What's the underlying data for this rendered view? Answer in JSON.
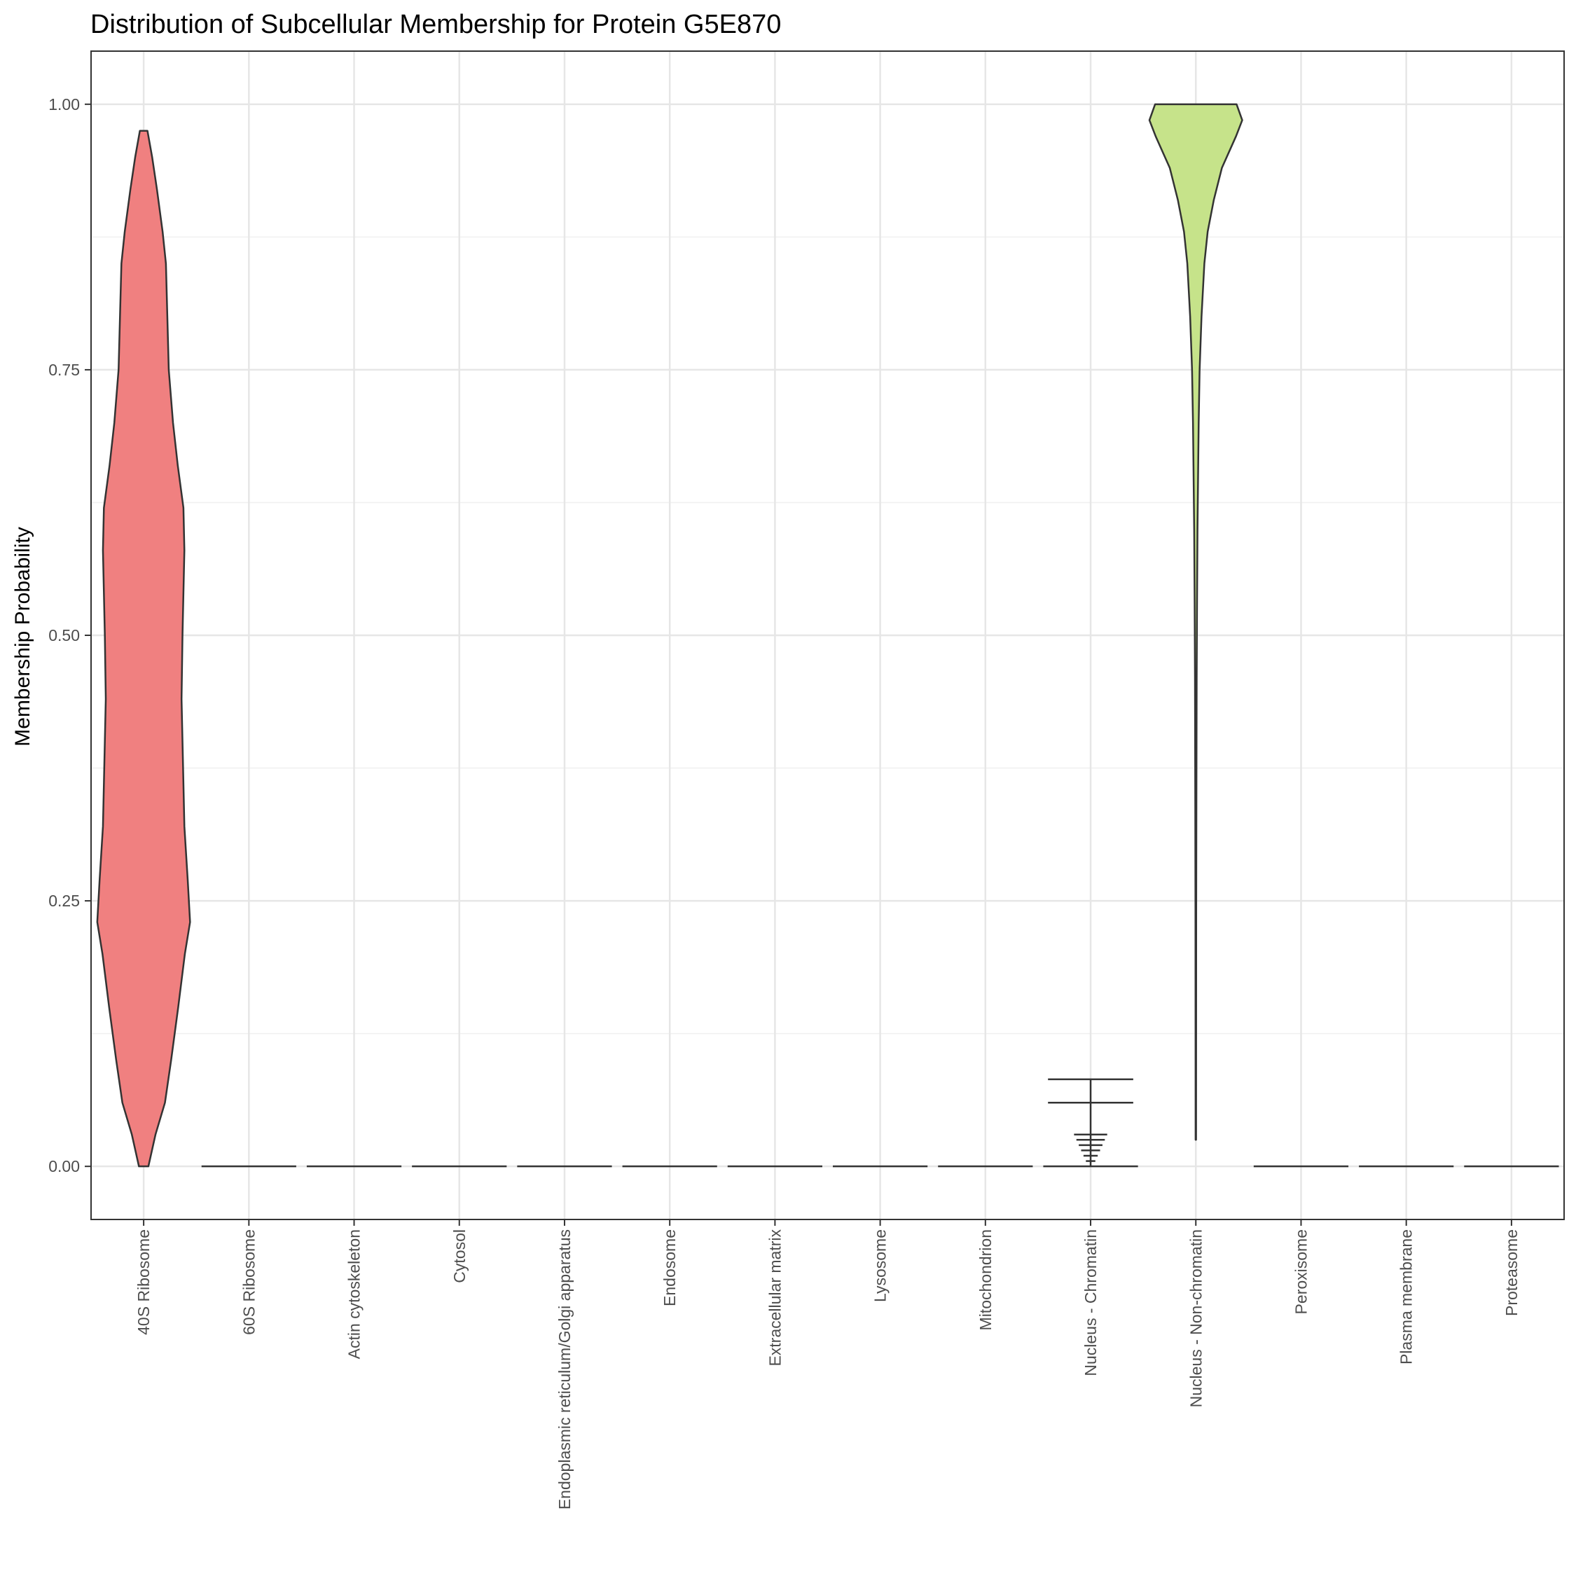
{
  "chart_data": {
    "type": "violin",
    "title": "Distribution of Subcellular Membership for Protein G5E870",
    "xlabel": "",
    "ylabel": "Membership Probability",
    "ylim": [
      -0.05,
      1.05
    ],
    "yticks": [
      "0.00",
      "0.25",
      "0.50",
      "0.75",
      "1.00"
    ],
    "grid": true,
    "legend": "none",
    "categories": [
      "40S Ribosome",
      "60S Ribosome",
      "Actin cytoskeleton",
      "Cytosol",
      "Endoplasmic reticulum/Golgi apparatus",
      "Endosome",
      "Extracellular matrix",
      "Lysosome",
      "Mitochondrion",
      "Nucleus - Chromatin",
      "Nucleus - Non-chromatin",
      "Peroxisome",
      "Plasma membrane",
      "Proteasome"
    ],
    "violins": [
      {
        "category": "40S Ribosome",
        "color": "#F08080",
        "range": [
          0.0,
          0.975
        ],
        "density": [
          [
            0.0,
            0.1
          ],
          [
            0.03,
            0.25
          ],
          [
            0.06,
            0.45
          ],
          [
            0.1,
            0.58
          ],
          [
            0.15,
            0.73
          ],
          [
            0.2,
            0.87
          ],
          [
            0.23,
            0.98
          ],
          [
            0.27,
            0.93
          ],
          [
            0.32,
            0.86
          ],
          [
            0.38,
            0.83
          ],
          [
            0.44,
            0.8
          ],
          [
            0.5,
            0.82
          ],
          [
            0.58,
            0.86
          ],
          [
            0.62,
            0.84
          ],
          [
            0.66,
            0.72
          ],
          [
            0.7,
            0.62
          ],
          [
            0.75,
            0.53
          ],
          [
            0.8,
            0.5
          ],
          [
            0.85,
            0.47
          ],
          [
            0.88,
            0.4
          ],
          [
            0.92,
            0.28
          ],
          [
            0.95,
            0.18
          ],
          [
            0.975,
            0.08
          ]
        ]
      },
      {
        "category": "Nucleus - Non-chromatin",
        "color": "#C6E38A",
        "range": [
          0.025,
          1.0
        ],
        "density": [
          [
            0.025,
            0.005
          ],
          [
            0.1,
            0.006
          ],
          [
            0.24,
            0.008
          ],
          [
            0.34,
            0.012
          ],
          [
            0.46,
            0.018
          ],
          [
            0.53,
            0.025
          ],
          [
            0.6,
            0.035
          ],
          [
            0.7,
            0.06
          ],
          [
            0.75,
            0.08
          ],
          [
            0.8,
            0.12
          ],
          [
            0.85,
            0.18
          ],
          [
            0.88,
            0.25
          ],
          [
            0.91,
            0.38
          ],
          [
            0.94,
            0.55
          ],
          [
            0.97,
            0.85
          ],
          [
            0.985,
            0.98
          ],
          [
            1.0,
            0.86
          ]
        ]
      }
    ],
    "collapsed_at_zero": [
      "60S Ribosome",
      "Actin cytoskeleton",
      "Cytosol",
      "Endoplasmic reticulum/Golgi apparatus",
      "Endosome",
      "Extracellular matrix",
      "Lysosome",
      "Mitochondrion",
      "Nucleus - Chromatin",
      "Peroxisome",
      "Plasma membrane",
      "Proteasome"
    ],
    "chromatin_spikes": [
      {
        "value": 0.082,
        "width": 0.9
      },
      {
        "value": 0.06,
        "width": 0.9
      },
      {
        "value": 0.03,
        "width": 0.35
      },
      {
        "value": 0.025,
        "width": 0.3
      },
      {
        "value": 0.02,
        "width": 0.25
      },
      {
        "value": 0.015,
        "width": 0.2
      },
      {
        "value": 0.01,
        "width": 0.15
      },
      {
        "value": 0.005,
        "width": 0.1
      }
    ]
  }
}
